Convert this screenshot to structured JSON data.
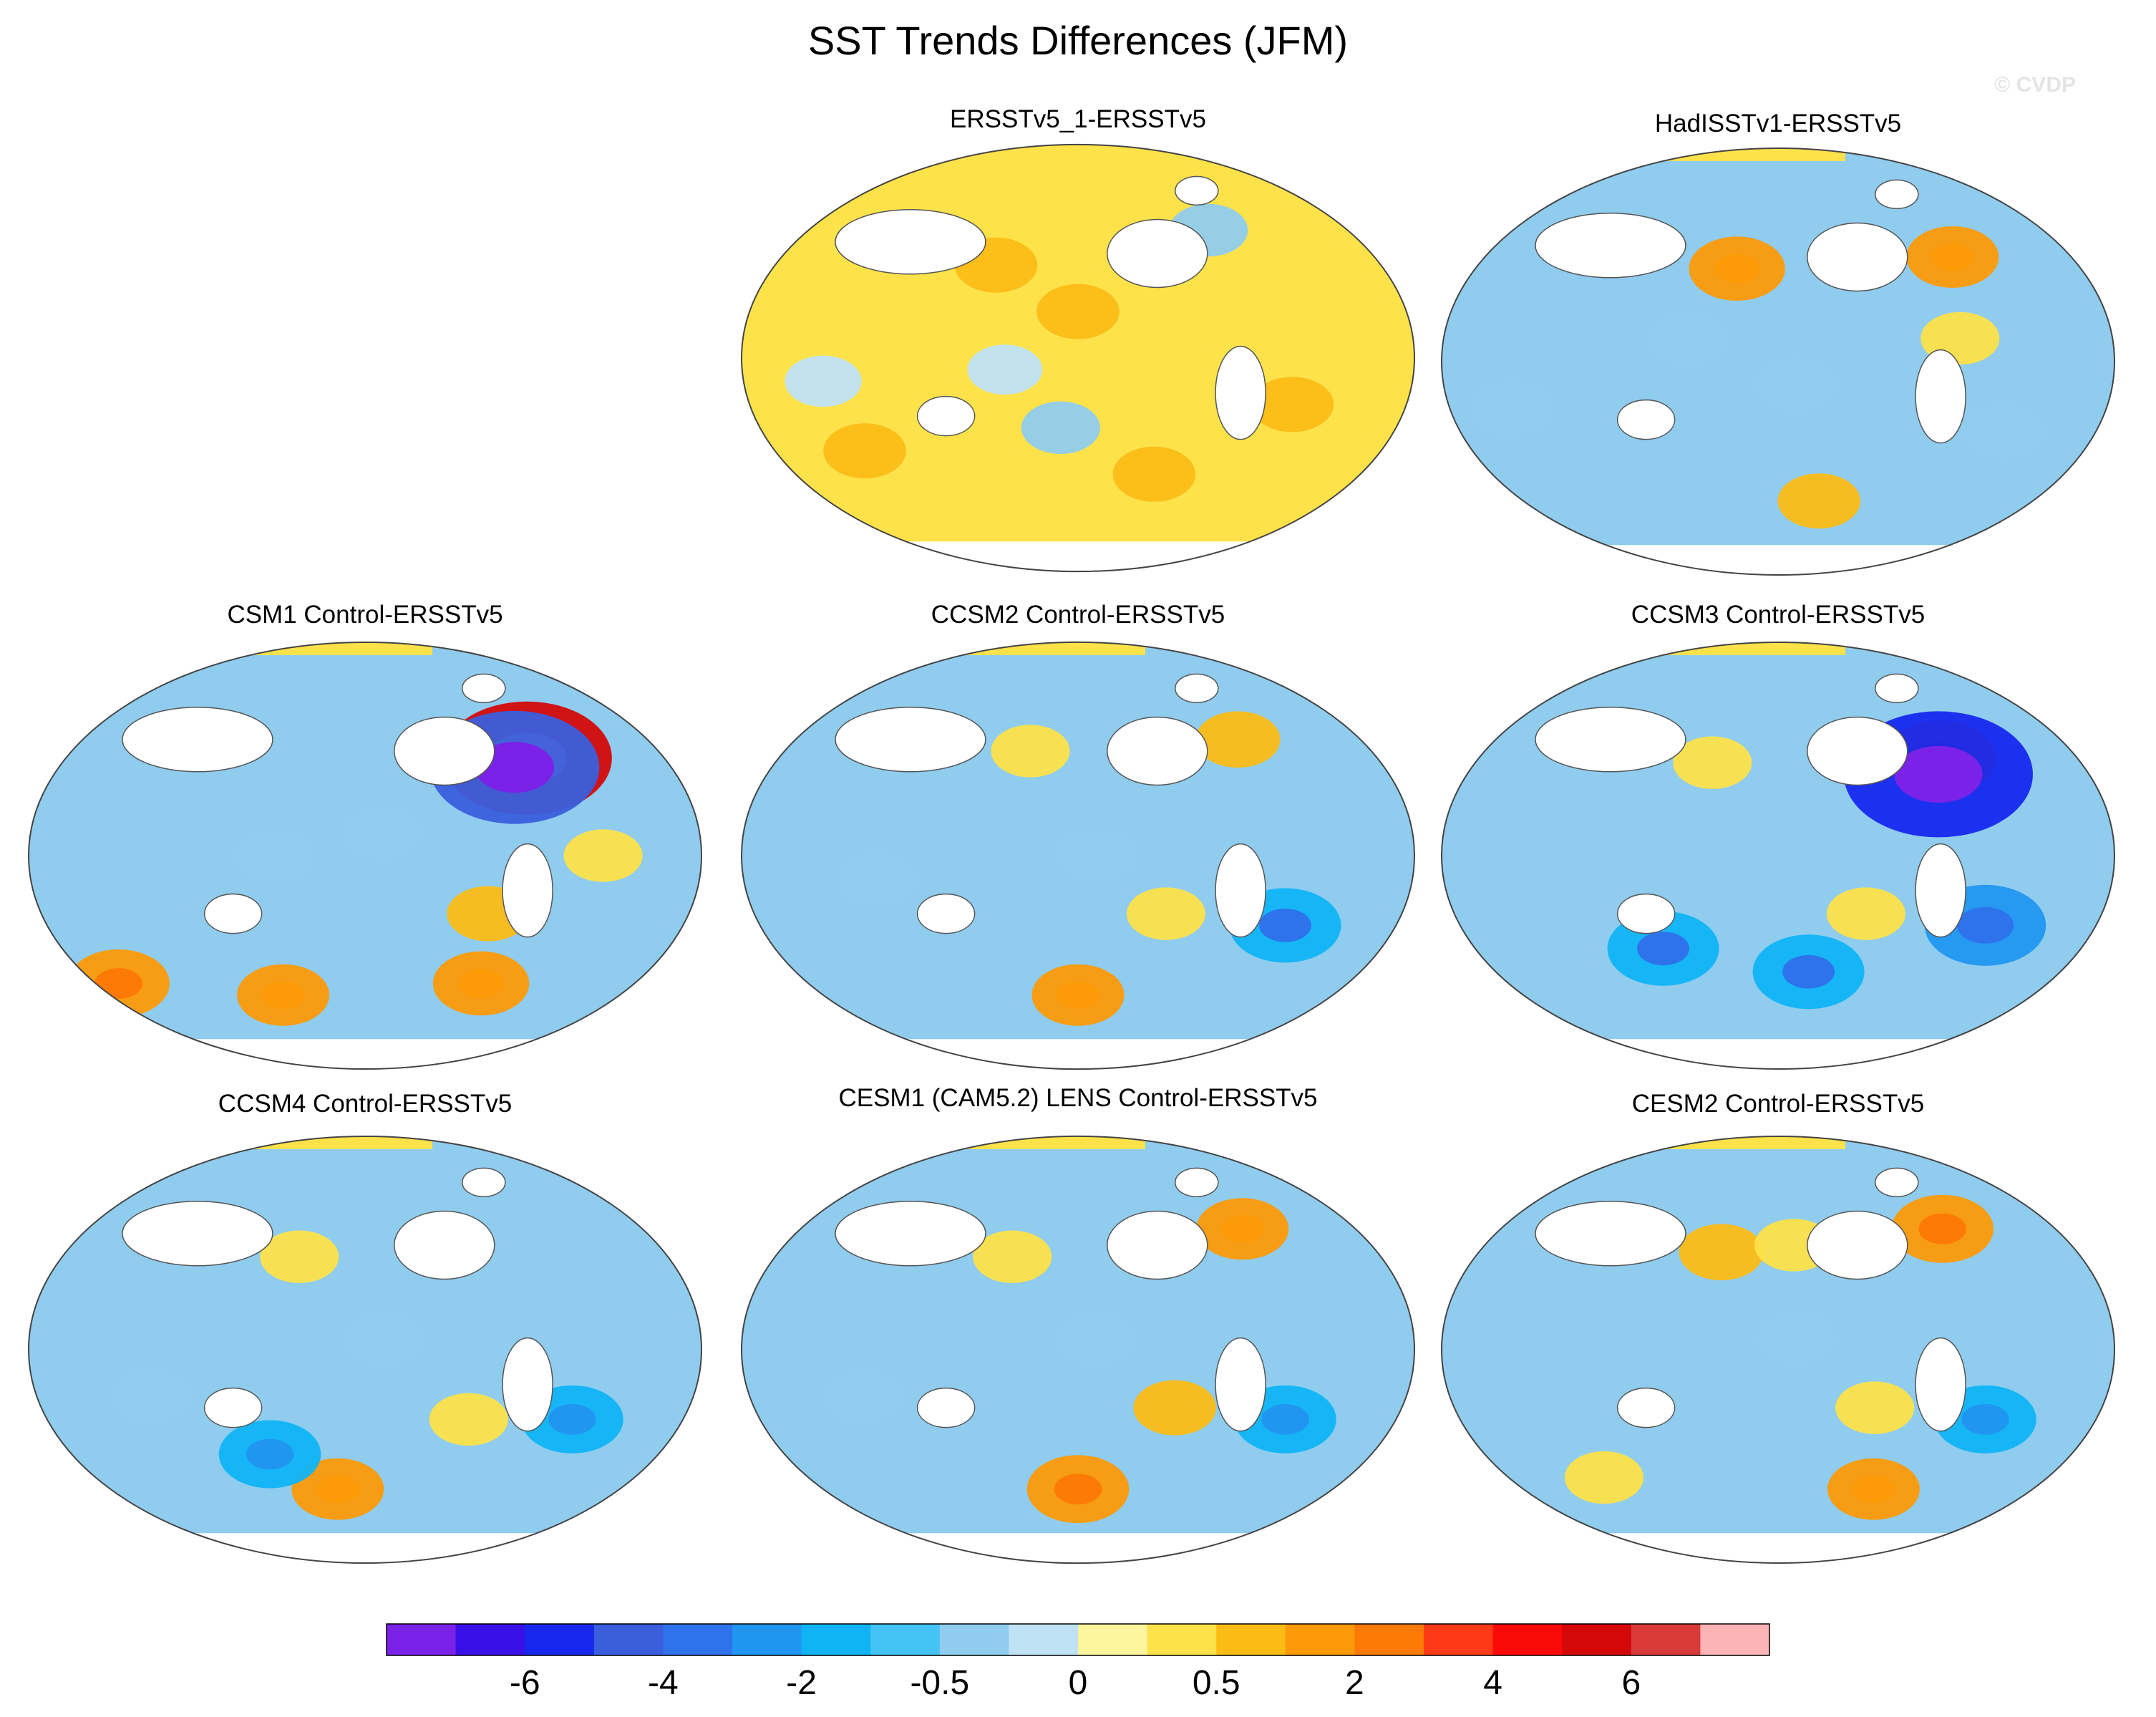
{
  "chart_data": {
    "type": "heatmap",
    "title": "SST Trends Differences (JFM)",
    "watermark": "© CVDP",
    "projection": "Robinson (Pacific-centered global maps)",
    "panels": [
      {
        "title": "ERSSTv5_1-ERSSTv5",
        "dominant_sign": "positive",
        "blobs": [
          {
            "lon": -150,
            "lat": 20,
            "value": 0.5
          },
          {
            "lon": 130,
            "lat": 20,
            "value": 0.3
          },
          {
            "lon": -30,
            "lat": -20,
            "value": 0.5
          },
          {
            "lon": -20,
            "lat": 20,
            "value": 0.3
          },
          {
            "lon": 80,
            "lat": -40,
            "value": 0.5
          },
          {
            "lon": 160,
            "lat": 40,
            "value": 0.5
          },
          {
            "lon": 170,
            "lat": -5,
            "value": -0.1
          },
          {
            "lon": 70,
            "lat": -10,
            "value": -0.2
          },
          {
            "lon": -160,
            "lat": -30,
            "value": -0.3
          },
          {
            "lon": -100,
            "lat": -50,
            "value": 0.5
          },
          {
            "lon": -60,
            "lat": 55,
            "value": -0.3
          }
        ]
      },
      {
        "title": "HadISSTv1-ERSSTv5",
        "dominant_sign": "negative",
        "blobs": [
          {
            "lon": -175,
            "lat": 40,
            "value": 1.2
          },
          {
            "lon": -40,
            "lat": 45,
            "value": 1.0
          },
          {
            "lon": -50,
            "lat": 10,
            "value": 0.3
          },
          {
            "lon": -120,
            "lat": -60,
            "value": 0.5
          },
          {
            "lon": 60,
            "lat": -20,
            "value": -0.5
          },
          {
            "lon": -140,
            "lat": -10,
            "value": -0.5
          },
          {
            "lon": 160,
            "lat": 10,
            "value": -0.3
          },
          {
            "lon": -20,
            "lat": -30,
            "value": -0.5
          }
        ]
      },
      {
        "title": "CSM1 Control-ERSSTv5",
        "dominant_sign": "negative",
        "blobs": [
          {
            "lon": -50,
            "lat": 42,
            "value": 5.0
          },
          {
            "lon": -60,
            "lat": 38,
            "value": -5.0
          },
          {
            "lon": 40,
            "lat": -55,
            "value": 1.5
          },
          {
            "lon": 150,
            "lat": -60,
            "value": 1.0
          },
          {
            "lon": -70,
            "lat": -55,
            "value": 1.2
          },
          {
            "lon": -80,
            "lat": -25,
            "value": 0.5
          },
          {
            "lon": -140,
            "lat": 10,
            "value": -0.3
          },
          {
            "lon": 160,
            "lat": 0,
            "value": -0.3
          },
          {
            "lon": -20,
            "lat": 0,
            "value": 0.3
          }
        ]
      },
      {
        "title": "CCSM2 Control-ERSSTv5",
        "dominant_sign": "negative",
        "blobs": [
          {
            "lon": -45,
            "lat": 50,
            "value": 0.6
          },
          {
            "lon": 180,
            "lat": 45,
            "value": 0.3
          },
          {
            "lon": -150,
            "lat": -60,
            "value": 1.0
          },
          {
            "lon": -100,
            "lat": -25,
            "value": 0.3
          },
          {
            "lon": -140,
            "lat": 0,
            "value": -0.3
          },
          {
            "lon": 100,
            "lat": -10,
            "value": -0.3
          },
          {
            "lon": -30,
            "lat": -30,
            "value": -2.0
          }
        ]
      },
      {
        "title": "CCSM3 Control-ERSSTv5",
        "dominant_sign": "negative",
        "blobs": [
          {
            "lon": -50,
            "lat": 42,
            "value": 2.0
          },
          {
            "lon": -55,
            "lat": 35,
            "value": -6.0
          },
          {
            "lon": 170,
            "lat": 40,
            "value": 0.3
          },
          {
            "lon": -100,
            "lat": -25,
            "value": 0.3
          },
          {
            "lon": -30,
            "lat": -30,
            "value": -2.5
          },
          {
            "lon": 140,
            "lat": -40,
            "value": -2.0
          },
          {
            "lon": -130,
            "lat": -50,
            "value": -2.0
          }
        ]
      },
      {
        "title": "CCSM4 Control-ERSSTv5",
        "dominant_sign": "negative",
        "blobs": [
          {
            "lon": 170,
            "lat": 40,
            "value": 0.3
          },
          {
            "lon": -170,
            "lat": -60,
            "value": 1.0
          },
          {
            "lon": -90,
            "lat": -30,
            "value": 0.3
          },
          {
            "lon": -140,
            "lat": 5,
            "value": -0.3
          },
          {
            "lon": 90,
            "lat": -20,
            "value": -0.3
          },
          {
            "lon": -30,
            "lat": -30,
            "value": -1.5
          },
          {
            "lon": 150,
            "lat": -45,
            "value": -1.5
          }
        ]
      },
      {
        "title": "CESM1 (CAM5.2) LENS Control-ERSSTv5",
        "dominant_sign": "negative",
        "blobs": [
          {
            "lon": -40,
            "lat": 52,
            "value": 1.0
          },
          {
            "lon": 170,
            "lat": 40,
            "value": 0.3
          },
          {
            "lon": -150,
            "lat": -60,
            "value": 1.5
          },
          {
            "lon": -95,
            "lat": -25,
            "value": 0.5
          },
          {
            "lon": -140,
            "lat": 5,
            "value": -0.3
          },
          {
            "lon": 90,
            "lat": -20,
            "value": -0.3
          },
          {
            "lon": -30,
            "lat": -30,
            "value": -1.5
          }
        ]
      },
      {
        "title": "CESM2 Control-ERSSTv5",
        "dominant_sign": "negative",
        "blobs": [
          {
            "lon": -40,
            "lat": 52,
            "value": 1.5
          },
          {
            "lon": 175,
            "lat": 42,
            "value": 0.6
          },
          {
            "lon": -140,
            "lat": 45,
            "value": 0.3
          },
          {
            "lon": 90,
            "lat": -55,
            "value": 0.3
          },
          {
            "lon": -80,
            "lat": -60,
            "value": 1.0
          },
          {
            "lon": -95,
            "lat": -25,
            "value": 0.3
          },
          {
            "lon": -140,
            "lat": 5,
            "value": -0.3
          },
          {
            "lon": -30,
            "lat": -30,
            "value": -1.5
          }
        ]
      }
    ],
    "colorbar": {
      "orientation": "horizontal",
      "levels": [
        -7,
        -6,
        -5,
        -4,
        -3,
        -2,
        -1,
        -0.5,
        -0.25,
        0,
        0.25,
        0.5,
        1,
        2,
        3,
        4,
        5,
        6,
        7
      ],
      "colors": [
        "#7b22e8",
        "#3a10e8",
        "#1628ee",
        "#3a5edc",
        "#2e72ec",
        "#2196f0",
        "#10b4f5",
        "#44c3f5",
        "#90ccee",
        "#bfe2f5",
        "#fff59e",
        "#fde24a",
        "#fcbc16",
        "#fc9a08",
        "#fc7a05",
        "#fc3a16",
        "#fc0a08",
        "#d40808",
        "#d83a3a",
        "#fcb4b4"
      ],
      "tick_labels": [
        {
          "label": "-6",
          "level": -6
        },
        {
          "label": "-4",
          "level": -4
        },
        {
          "label": "-2",
          "level": -2
        },
        {
          "label": "-0.5",
          "level": -0.5
        },
        {
          "label": "0",
          "level": 0
        },
        {
          "label": "0.5",
          "level": 0.5
        },
        {
          "label": "2",
          "level": 2
        },
        {
          "label": "4",
          "level": 4
        },
        {
          "label": "6",
          "level": 6
        }
      ]
    }
  }
}
